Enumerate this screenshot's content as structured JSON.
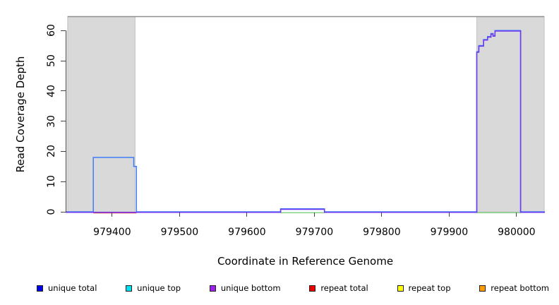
{
  "figure": {
    "background": "#ffffff"
  },
  "chart_data": {
    "type": "line",
    "title": "",
    "xlabel": "Coordinate in Reference Genome",
    "ylabel": "Read Coverage Depth",
    "xlim": [
      979331,
      980042
    ],
    "ylim": [
      0,
      64.8
    ],
    "x_ticks": [
      979400,
      979500,
      979600,
      979700,
      979800,
      979900,
      980000
    ],
    "y_ticks": [
      0,
      10,
      20,
      30,
      40,
      50,
      60
    ],
    "grid": false,
    "boundary_line_y": 64.6,
    "boundary_line_color": "#8f8f8f",
    "shade_fill": "#d9d9d9",
    "shade_border": "#c2c2c2",
    "shaded_regions": [
      {
        "x0": 979334,
        "x1": 979434
      },
      {
        "x0": 979941,
        "x1": 980041
      }
    ],
    "series": [
      {
        "name": "plot-top-boundary",
        "color": "#8f8f8f",
        "width": 1.4,
        "dy": 0,
        "points": [
          [
            979334,
            64.6
          ],
          [
            980041,
            64.6
          ]
        ]
      },
      {
        "name": "repeat total",
        "color": "#ef4040",
        "width": 1.4,
        "dy": 1.6,
        "points": [
          [
            979372,
            0
          ],
          [
            979436,
            0
          ]
        ]
      },
      {
        "name": "baseline-accent-under-bump",
        "color": "#7ccd7c",
        "width": 1.4,
        "dy": 1.3,
        "points": [
          [
            979650,
            0
          ],
          [
            979715,
            0
          ]
        ]
      },
      {
        "name": "baseline-accent-under-peak",
        "color": "#7ccd7c",
        "width": 1.4,
        "dy": 1.3,
        "points": [
          [
            979941,
            0
          ],
          [
            980006,
            0
          ]
        ]
      },
      {
        "name": "unique total",
        "color": "#3f7cf6",
        "width": 1.5,
        "dy": 0,
        "points": [
          [
            979331,
            0
          ],
          [
            979372,
            0
          ],
          [
            979372,
            18
          ],
          [
            979432,
            18
          ],
          [
            979432,
            15
          ],
          [
            979436,
            15
          ],
          [
            979436,
            0
          ],
          [
            979650,
            0
          ],
          [
            979650,
            1
          ],
          [
            979715,
            1
          ],
          [
            979715,
            0
          ],
          [
            979941,
            0
          ],
          [
            979941,
            53
          ],
          [
            979944,
            53
          ],
          [
            979944,
            55
          ],
          [
            979951,
            55
          ],
          [
            979951,
            57
          ],
          [
            979957,
            57
          ],
          [
            979957,
            58
          ],
          [
            979962,
            58
          ],
          [
            979962,
            59
          ],
          [
            979965,
            59
          ],
          [
            979965,
            58.3
          ],
          [
            979968,
            58.3
          ],
          [
            979968,
            60
          ],
          [
            980006,
            60
          ],
          [
            980006,
            0
          ],
          [
            980042,
            0
          ]
        ]
      },
      {
        "name": "unique bottom",
        "color": "#6c38f2",
        "width": 1.5,
        "dy": 0.8,
        "points": [
          [
            979331,
            0
          ],
          [
            979650,
            0
          ],
          [
            979650,
            1
          ],
          [
            979715,
            1
          ],
          [
            979715,
            0
          ],
          [
            979941,
            0
          ],
          [
            979941,
            53
          ],
          [
            979944,
            53
          ],
          [
            979944,
            55
          ],
          [
            979951,
            55
          ],
          [
            979951,
            57
          ],
          [
            979957,
            57
          ],
          [
            979957,
            58
          ],
          [
            979962,
            58
          ],
          [
            979962,
            59
          ],
          [
            979965,
            59
          ],
          [
            979965,
            58.3
          ],
          [
            979968,
            58.3
          ],
          [
            979968,
            60
          ],
          [
            980006,
            60
          ],
          [
            980006,
            0
          ],
          [
            980042,
            0
          ]
        ]
      },
      {
        "name": "unique top",
        "color": "#00e0ee",
        "hidden": true,
        "points": [
          [
            979331,
            0
          ],
          [
            980042,
            0
          ]
        ]
      },
      {
        "name": "repeat top",
        "color": "#ffff00",
        "hidden": true,
        "points": [
          [
            979331,
            0
          ],
          [
            980042,
            0
          ]
        ]
      },
      {
        "name": "repeat bottom",
        "color": "#ff9d00",
        "hidden": true,
        "points": [
          [
            979331,
            0
          ],
          [
            980042,
            0
          ]
        ]
      }
    ],
    "legend_position": "bottom"
  },
  "legend": {
    "items": [
      {
        "label": "unique total",
        "color": "#0000ee"
      },
      {
        "label": "unique top",
        "color": "#00e0ee"
      },
      {
        "label": "unique bottom",
        "color": "#a020f0"
      },
      {
        "label": "repeat total",
        "color": "#ee0000"
      },
      {
        "label": "repeat top",
        "color": "#ffff00"
      },
      {
        "label": "repeat bottom",
        "color": "#ff9d00"
      }
    ]
  }
}
